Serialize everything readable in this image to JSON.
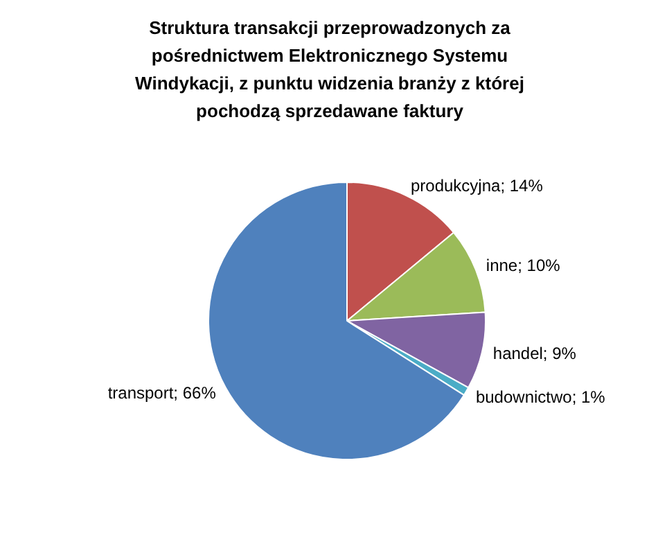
{
  "chart_data": {
    "type": "pie",
    "title": "Struktura transakcji przeprowadzonych za pośrednictwem Elektronicznego Systemu Windykacji, z punktu widzenia branży z której pochodzą sprzedawane faktury",
    "categories": [
      "produkcyjna",
      "inne",
      "handel",
      "budownictwo",
      "transport"
    ],
    "values": [
      14,
      10,
      9,
      1,
      66
    ],
    "value_labels": [
      "14%",
      "10%",
      "9%",
      "1%",
      "66%"
    ],
    "colors": [
      "#c0504d",
      "#9bbb59",
      "#8064a2",
      "#4bacc6",
      "#4f81bd"
    ]
  }
}
